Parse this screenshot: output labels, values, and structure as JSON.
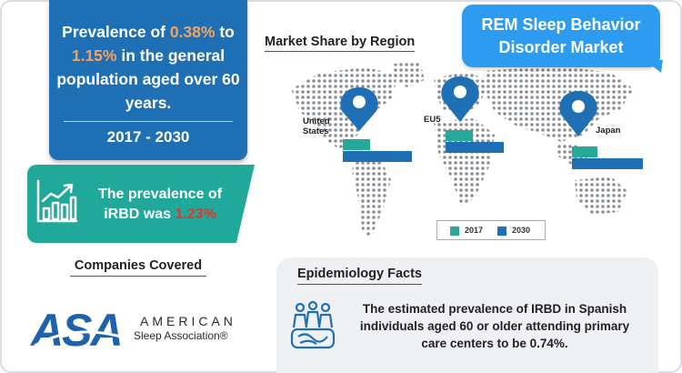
{
  "title": "REM Sleep Behavior Disorder Market",
  "prevalence": {
    "text_before": "Prevalence of ",
    "low": "0.38%",
    "text_mid": " to ",
    "high": "1.15%",
    "text_after": " in the general population aged over 60 years.",
    "years": "2017 - 2030"
  },
  "irbd": {
    "text": "The prevalence of iRBD was ",
    "value": "1.23%"
  },
  "companies": {
    "title": "Companies Covered",
    "logo_letters": "ASA",
    "logo_word": "AMERICAN",
    "logo_sub": "Sleep Association®"
  },
  "market_share": {
    "title": "Market Share by Region",
    "regions": [
      {
        "name": "United States",
        "label_line1": "United",
        "label_line2": "States"
      },
      {
        "name": "EU5",
        "label_line1": "EU5"
      },
      {
        "name": "Japan",
        "label_line1": "Japan"
      }
    ],
    "legend": [
      {
        "label": "2017",
        "color": "#27a899"
      },
      {
        "label": "2030",
        "color": "#1f6fb4"
      }
    ]
  },
  "epidemiology": {
    "title": "Epidemiology Facts",
    "text": "The estimated prevalence of IRBD in Spanish individuals aged 60 or older attending primary care centers to be 0.74%."
  },
  "colors": {
    "blue": "#1f6fb4",
    "teal": "#20a89a",
    "orange": "#f5a35c",
    "red": "#e2352b",
    "bubble": "#2d9cf0"
  }
}
